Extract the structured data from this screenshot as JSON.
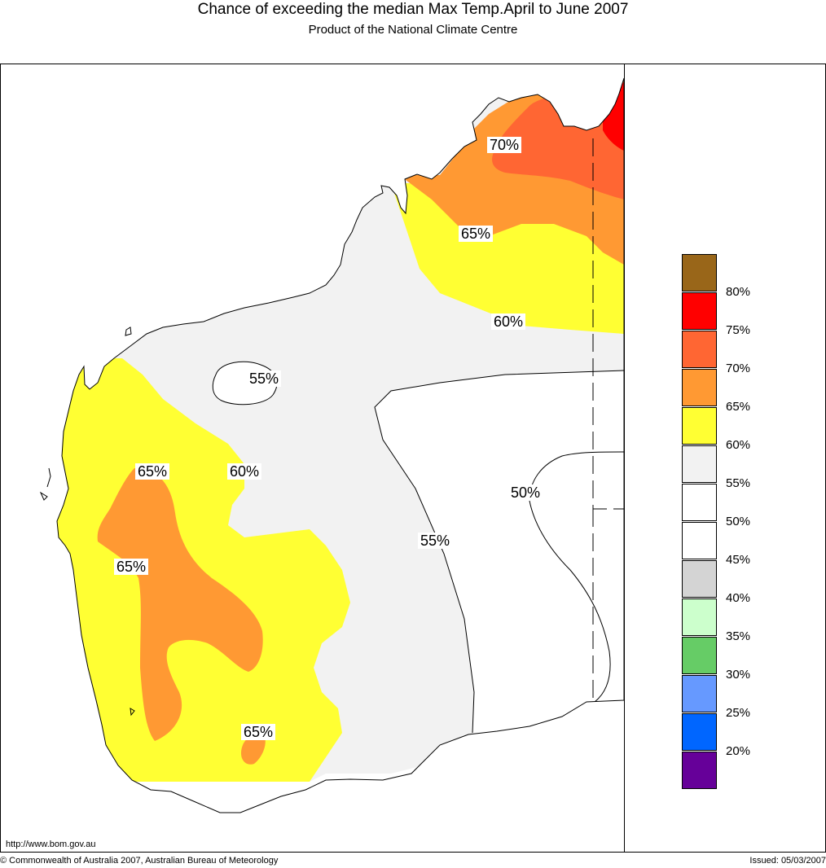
{
  "header": {
    "title": "Chance of exceeding the median Max Temp.April to June 2007",
    "subtitle": "Product of the National Climate Centre"
  },
  "map": {
    "region": "Western Australia",
    "contour_labels": [
      {
        "text": "70%"
      },
      {
        "text": "65%"
      },
      {
        "text": "60%"
      },
      {
        "text": "55%"
      },
      {
        "text": "50%"
      },
      {
        "text": "55%"
      },
      {
        "text": "65%"
      },
      {
        "text": "60%"
      },
      {
        "text": "65%"
      },
      {
        "text": "65%"
      }
    ],
    "fill_colors": {
      "land_default": "#ffffff",
      "band_55_60": "#f2f2f2",
      "band_60_65": "#ffff33",
      "band_65_70": "#ff9933",
      "band_70_75": "#ff6633",
      "band_75_80": "#ff0000"
    }
  },
  "legend": {
    "items": [
      {
        "color": "#996619",
        "label": "80%"
      },
      {
        "color": "#ff0000",
        "label": "75%"
      },
      {
        "color": "#ff6633",
        "label": "70%"
      },
      {
        "color": "#ff9933",
        "label": "65%"
      },
      {
        "color": "#ffff33",
        "label": "60%"
      },
      {
        "color": "#f2f2f2",
        "label": "55%"
      },
      {
        "color": "#ffffff",
        "label": "50%"
      },
      {
        "color": "#ffffff",
        "label": "45%"
      },
      {
        "color": "#d4d4d4",
        "label": "40%"
      },
      {
        "color": "#ccffcc",
        "label": "35%"
      },
      {
        "color": "#66cc66",
        "label": "30%"
      },
      {
        "color": "#6699ff",
        "label": "25%"
      },
      {
        "color": "#0066ff",
        "label": "20%"
      },
      {
        "color": "#660099",
        "label": ""
      }
    ]
  },
  "footer": {
    "url": "http://www.bom.gov.au",
    "copyright": "© Commonwealth of Australia 2007, Australian Bureau of Meteorology",
    "issued": "Issued: 05/03/2007"
  }
}
